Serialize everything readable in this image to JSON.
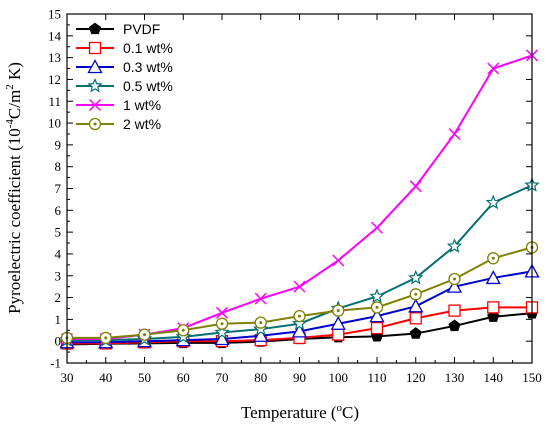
{
  "chart_data": {
    "type": "line",
    "xlabel": "Temperature (",
    "xlabel_sup": "o",
    "xlabel_tail": "C)",
    "ylabel": "Pyroelectric coefficient (10",
    "ylabel_sup1": "-4",
    "ylabel_mid": "C/m",
    "ylabel_sup2": "2",
    "ylabel_tail": " K)",
    "xlim": [
      30,
      150
    ],
    "ylim": [
      -1,
      15
    ],
    "xticks": [
      "30",
      "40",
      "50",
      "60",
      "70",
      "80",
      "90",
      "100",
      "110",
      "120",
      "130",
      "140",
      "150"
    ],
    "yticks": [
      "-1",
      "0",
      "1",
      "2",
      "3",
      "4",
      "5",
      "6",
      "7",
      "8",
      "9",
      "10",
      "11",
      "12",
      "13",
      "14",
      "15"
    ],
    "legend_position": "top-left",
    "x": [
      30,
      40,
      50,
      60,
      70,
      80,
      90,
      100,
      110,
      120,
      130,
      140,
      150
    ],
    "series": [
      {
        "name": "PVDF",
        "color": "#000000",
        "marker": "pentagon-filled",
        "values": [
          -0.15,
          -0.12,
          -0.1,
          -0.08,
          -0.08,
          -0.02,
          0.1,
          0.18,
          0.22,
          0.35,
          0.7,
          1.12,
          1.28
        ]
      },
      {
        "name": "0.1 wt%",
        "color": "#ff0000",
        "marker": "square",
        "values": [
          -0.1,
          -0.1,
          -0.05,
          0.0,
          0.0,
          0.05,
          0.15,
          0.3,
          0.6,
          1.05,
          1.4,
          1.55,
          1.55
        ]
      },
      {
        "name": "0.3 wt%",
        "color": "#0000cc",
        "marker": "triangle",
        "values": [
          -0.05,
          -0.05,
          0.0,
          0.05,
          0.1,
          0.25,
          0.45,
          0.8,
          1.15,
          1.6,
          2.5,
          2.9,
          3.2
        ]
      },
      {
        "name": "0.5 wt%",
        "color": "#007070",
        "marker": "star",
        "values": [
          0.05,
          0.05,
          0.1,
          0.2,
          0.4,
          0.55,
          0.8,
          1.5,
          2.05,
          2.9,
          4.35,
          6.35,
          7.15
        ]
      },
      {
        "name": "1 wt%",
        "color": "#ff00ff",
        "marker": "x",
        "values": [
          0.1,
          0.1,
          0.3,
          0.6,
          1.3,
          1.95,
          2.5,
          3.7,
          5.2,
          7.1,
          9.5,
          12.5,
          13.1
        ]
      },
      {
        "name": "2 wt%",
        "color": "#808000",
        "marker": "circle-dot",
        "values": [
          0.15,
          0.15,
          0.3,
          0.5,
          0.8,
          0.85,
          1.15,
          1.4,
          1.55,
          2.15,
          2.85,
          3.8,
          4.3
        ]
      }
    ]
  }
}
